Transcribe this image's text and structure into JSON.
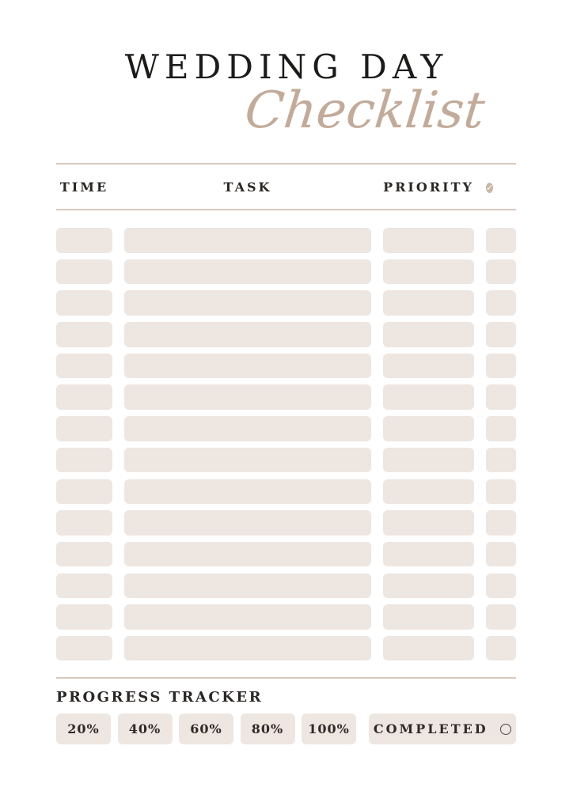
{
  "header": {
    "title": "WEDDING DAY",
    "subtitle": "Checklist"
  },
  "table": {
    "columns": [
      {
        "label": "TIME"
      },
      {
        "label": "TASK"
      },
      {
        "label": "PRIORITY"
      },
      {
        "label": "",
        "icon": "check-circle"
      }
    ],
    "header_check_glyph": "✓",
    "rows": [
      {
        "time": "",
        "task": "",
        "priority": "",
        "done": false
      },
      {
        "time": "",
        "task": "",
        "priority": "",
        "done": false
      },
      {
        "time": "",
        "task": "",
        "priority": "",
        "done": false
      },
      {
        "time": "",
        "task": "",
        "priority": "",
        "done": false
      },
      {
        "time": "",
        "task": "",
        "priority": "",
        "done": false
      },
      {
        "time": "",
        "task": "",
        "priority": "",
        "done": false
      },
      {
        "time": "",
        "task": "",
        "priority": "",
        "done": false
      },
      {
        "time": "",
        "task": "",
        "priority": "",
        "done": false
      },
      {
        "time": "",
        "task": "",
        "priority": "",
        "done": false
      },
      {
        "time": "",
        "task": "",
        "priority": "",
        "done": false
      },
      {
        "time": "",
        "task": "",
        "priority": "",
        "done": false
      },
      {
        "time": "",
        "task": "",
        "priority": "",
        "done": false
      },
      {
        "time": "",
        "task": "",
        "priority": "",
        "done": false
      },
      {
        "time": "",
        "task": "",
        "priority": "",
        "done": false
      }
    ]
  },
  "tracker": {
    "heading": "PROGRESS TRACKER",
    "milestones": [
      "20%",
      "40%",
      "60%",
      "80%",
      "100%"
    ],
    "completed_label": "COMPLETED"
  },
  "colors": {
    "field_fill": "#EDE6E1",
    "divider": "#D8C9BE",
    "accent_script": "#C2AB9A",
    "check_circle_fill": "#C9B6A6",
    "text_dark": "#24211F"
  }
}
